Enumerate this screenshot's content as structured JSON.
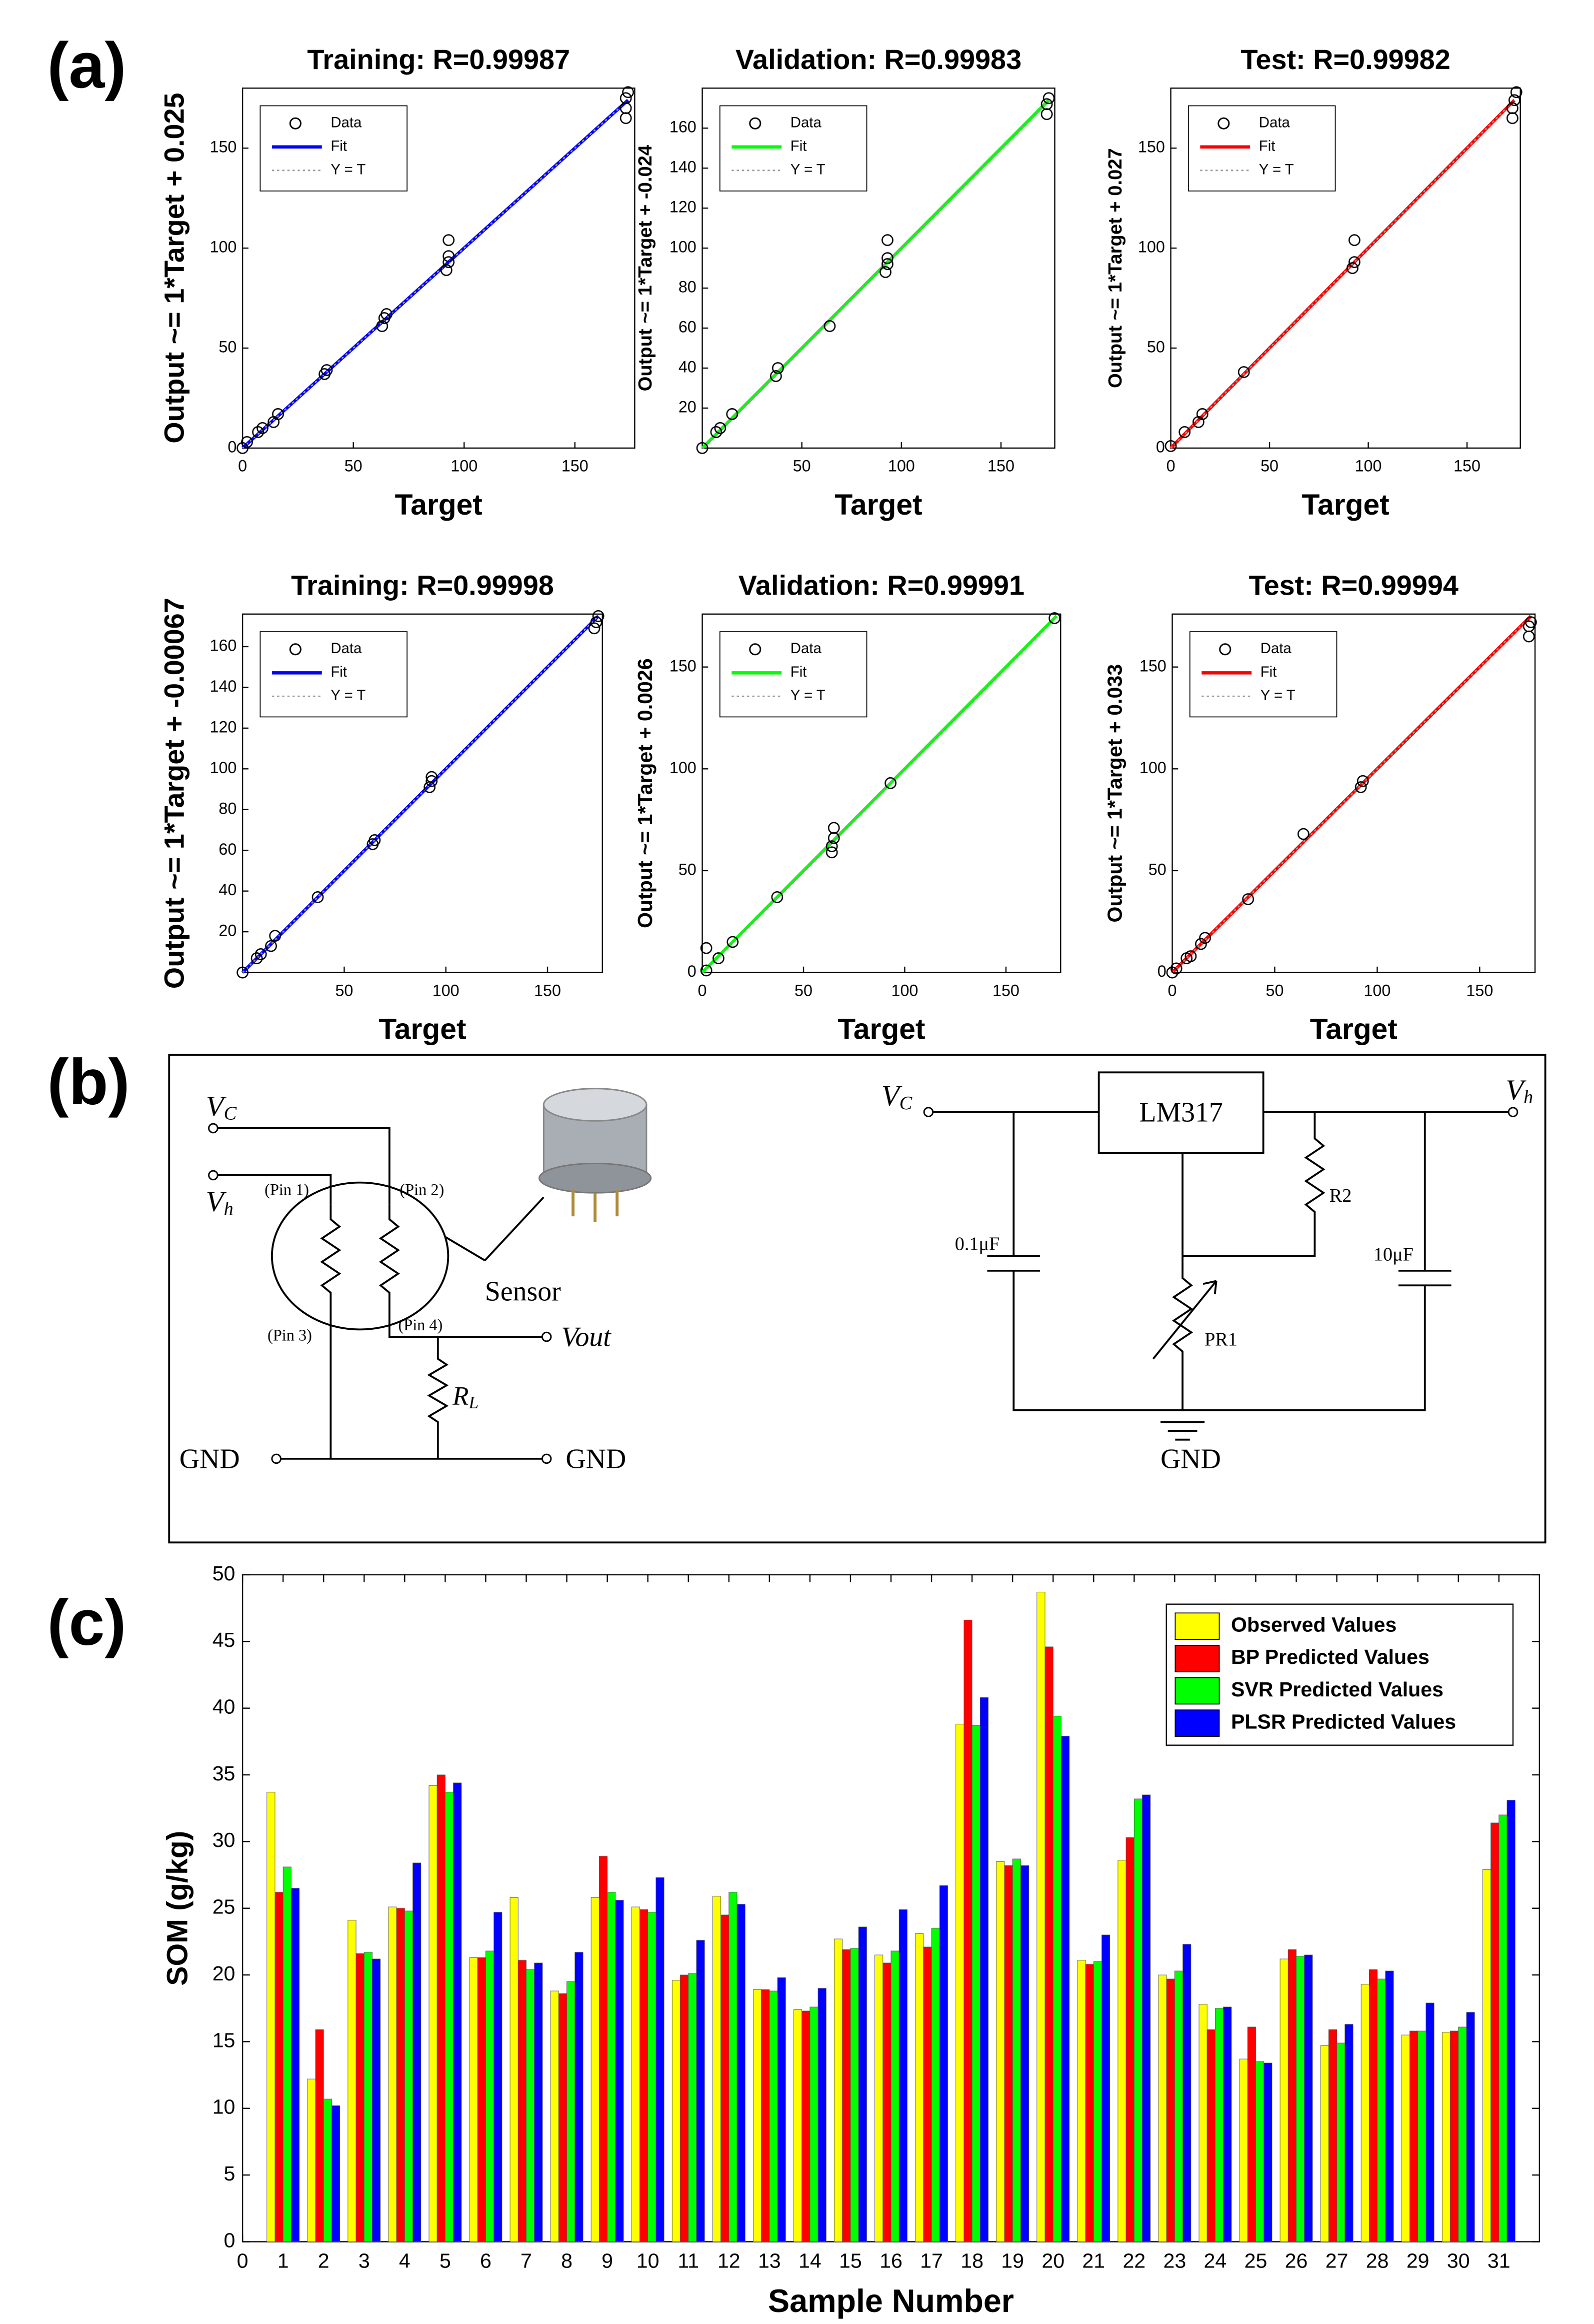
{
  "panel_labels": [
    "(a)",
    "(b)",
    "(c)"
  ],
  "chart_data": [
    {
      "type": "scatter",
      "title": "Training: R=0.99987",
      "xlabel": "Target",
      "ylabel": "Output ~= 1*Target + 0.025",
      "xlim": [
        0,
        177
      ],
      "ylim": [
        0,
        180
      ],
      "xticks": [
        0,
        50,
        100,
        150
      ],
      "yticks": [
        0,
        50,
        100,
        150
      ],
      "legend": "upper left",
      "series": [
        {
          "name": "Data",
          "color": "#000000",
          "line_style": "none",
          "marker": "circle",
          "x": [
            0,
            2,
            7,
            9,
            14,
            16,
            37,
            38,
            63,
            64,
            65,
            92,
            93,
            93,
            93,
            173,
            173,
            173,
            174
          ],
          "values": [
            0,
            3,
            8,
            10,
            13,
            17,
            37,
            39,
            61,
            65,
            67,
            89,
            93,
            96,
            104,
            165,
            170,
            175,
            178
          ]
        },
        {
          "name": "Fit",
          "color": "#0000ff",
          "line_style": "solid",
          "x": [
            0,
            174
          ],
          "values": [
            0.025,
            174.025
          ]
        },
        {
          "name": "Y = T",
          "color": "#999999",
          "line_style": "dotted",
          "x": [
            0,
            174
          ],
          "values": [
            0,
            174
          ]
        }
      ]
    },
    {
      "type": "scatter",
      "title": "Validation: R=0.99983",
      "xlabel": "Target",
      "ylabel": "Output ~= 1*Target + -0.024",
      "xlim": [
        0,
        177
      ],
      "ylim": [
        0,
        180
      ],
      "xticks": [
        50,
        100,
        150
      ],
      "yticks": [
        20,
        40,
        60,
        80,
        100,
        120,
        140,
        160
      ],
      "legend": "upper left",
      "series": [
        {
          "name": "Data",
          "color": "#000000",
          "line_style": "none",
          "marker": "circle",
          "x": [
            0,
            7,
            9,
            15,
            37,
            38,
            64,
            92,
            93,
            93,
            93,
            173,
            173,
            174
          ],
          "values": [
            0,
            8,
            10,
            17,
            36,
            40,
            61,
            88,
            92,
            95,
            104,
            167,
            172,
            175
          ]
        },
        {
          "name": "Fit",
          "color": "#00ff00",
          "line_style": "solid",
          "x": [
            0,
            174
          ],
          "values": [
            -0.024,
            173.976
          ]
        },
        {
          "name": "Y = T",
          "color": "#999999",
          "line_style": "dotted",
          "x": [
            0,
            174
          ],
          "values": [
            0,
            174
          ]
        }
      ]
    },
    {
      "type": "scatter",
      "title": "Test: R=0.99982",
      "xlabel": "Target",
      "ylabel": "Output ~= 1*Target + 0.027",
      "xlim": [
        0,
        177
      ],
      "ylim": [
        0,
        180
      ],
      "xticks": [
        0,
        50,
        100,
        150
      ],
      "yticks": [
        0,
        50,
        100,
        150
      ],
      "legend": "upper left",
      "series": [
        {
          "name": "Data",
          "color": "#000000",
          "line_style": "none",
          "marker": "circle",
          "x": [
            0,
            7,
            14,
            16,
            37,
            92,
            93,
            93,
            173,
            173,
            174,
            175
          ],
          "values": [
            1,
            8,
            13,
            17,
            38,
            90,
            93,
            104,
            165,
            170,
            174,
            178
          ]
        },
        {
          "name": "Fit",
          "color": "#ff0000",
          "line_style": "solid",
          "x": [
            0,
            174
          ],
          "values": [
            0.027,
            174.027
          ]
        },
        {
          "name": "Y = T",
          "color": "#999999",
          "line_style": "dotted",
          "x": [
            0,
            174
          ],
          "values": [
            0,
            174
          ]
        }
      ]
    },
    {
      "type": "scatter",
      "title": "Training: R=0.99998",
      "xlabel": "Target",
      "ylabel": "Output ~= 1*Target + -0.00067",
      "xlim": [
        0,
        177
      ],
      "ylim": [
        0,
        176
      ],
      "xticks": [
        50,
        100,
        150
      ],
      "yticks": [
        20,
        40,
        60,
        80,
        100,
        120,
        140,
        160
      ],
      "legend": "upper left",
      "series": [
        {
          "name": "Data",
          "color": "#000000",
          "line_style": "none",
          "marker": "circle",
          "x": [
            0,
            7,
            9,
            14,
            16,
            37,
            64,
            65,
            92,
            93,
            93,
            173,
            174,
            175
          ],
          "values": [
            0,
            7,
            9,
            13,
            18,
            37,
            63,
            65,
            91,
            94,
            96,
            169,
            172,
            175
          ]
        },
        {
          "name": "Fit",
          "color": "#0000ff",
          "line_style": "solid",
          "x": [
            0,
            175
          ],
          "values": [
            -0.00067,
            174.99933
          ]
        },
        {
          "name": "Y = T",
          "color": "#999999",
          "line_style": "dotted",
          "x": [
            0,
            175
          ],
          "values": [
            0,
            175
          ]
        }
      ]
    },
    {
      "type": "scatter",
      "title": "Validation: R=0.99991",
      "xlabel": "Target",
      "ylabel": "Output ~= 1*Target + 0.0026",
      "xlim": [
        0,
        177
      ],
      "ylim": [
        0,
        176
      ],
      "xticks": [
        0,
        50,
        100,
        150
      ],
      "yticks": [
        0,
        50,
        100,
        150
      ],
      "legend": "upper left",
      "series": [
        {
          "name": "Data",
          "color": "#000000",
          "line_style": "none",
          "marker": "circle",
          "x": [
            2,
            2,
            8,
            15,
            37,
            64,
            64,
            65,
            65,
            93,
            174
          ],
          "values": [
            12,
            1,
            7,
            15,
            37,
            59,
            62,
            66,
            71,
            93,
            174
          ]
        },
        {
          "name": "Fit",
          "color": "#00ff00",
          "line_style": "solid",
          "x": [
            0,
            175
          ],
          "values": [
            0.0026,
            175.0026
          ]
        },
        {
          "name": "Y = T",
          "color": "#999999",
          "line_style": "dotted",
          "x": [
            0,
            175
          ],
          "values": [
            0,
            175
          ]
        }
      ]
    },
    {
      "type": "scatter",
      "title": "Test: R=0.99994",
      "xlabel": "Target",
      "ylabel": "Output ~= 1*Target + 0.033",
      "xlim": [
        0,
        177
      ],
      "ylim": [
        0,
        176
      ],
      "xticks": [
        0,
        50,
        100,
        150
      ],
      "yticks": [
        0,
        50,
        100,
        150
      ],
      "legend": "upper left",
      "series": [
        {
          "name": "Data",
          "color": "#000000",
          "line_style": "none",
          "marker": "circle",
          "x": [
            0,
            2,
            7,
            9,
            14,
            16,
            37,
            64,
            92,
            93,
            174,
            174,
            175
          ],
          "values": [
            0,
            2,
            7,
            8,
            14,
            17,
            36,
            68,
            91,
            94,
            165,
            170,
            172
          ]
        },
        {
          "name": "Fit",
          "color": "#ff0000",
          "line_style": "solid",
          "x": [
            0,
            175
          ],
          "values": [
            0.033,
            175.033
          ]
        },
        {
          "name": "Y = T",
          "color": "#999999",
          "line_style": "dotted",
          "x": [
            0,
            175
          ],
          "values": [
            0,
            175
          ]
        }
      ]
    },
    {
      "type": "bar",
      "xlabel": "Sample Number",
      "ylabel": "SOM (g/kg)",
      "legend": "upper right",
      "x": [
        1,
        2,
        3,
        4,
        5,
        6,
        7,
        8,
        9,
        10,
        11,
        12,
        13,
        14,
        15,
        16,
        17,
        18,
        19,
        20,
        21,
        22,
        23,
        24,
        25,
        26,
        27,
        28,
        29,
        30,
        31
      ],
      "xlim": [
        0,
        32
      ],
      "xticks": [
        0,
        1,
        2,
        3,
        4,
        5,
        6,
        7,
        8,
        9,
        10,
        11,
        12,
        13,
        14,
        15,
        16,
        17,
        18,
        19,
        20,
        21,
        22,
        23,
        24,
        25,
        26,
        27,
        28,
        29,
        30,
        31
      ],
      "ylim": [
        0,
        50
      ],
      "yticks": [
        0,
        5,
        10,
        15,
        20,
        25,
        30,
        35,
        40,
        45,
        50
      ],
      "series": [
        {
          "name": "Observed Values",
          "color": "#ffff00",
          "values": [
            33.7,
            12.2,
            24.1,
            25.1,
            34.2,
            21.3,
            25.8,
            18.8,
            25.8,
            25.1,
            19.6,
            25.9,
            18.9,
            17.4,
            22.7,
            21.5,
            23.1,
            38.8,
            28.5,
            48.7,
            21.1,
            28.6,
            20.0,
            17.8,
            13.7,
            21.2,
            14.7,
            19.3,
            15.5,
            15.7,
            27.9
          ]
        },
        {
          "name": "BP Predicted Values",
          "color": "#ff0000",
          "values": [
            26.2,
            15.9,
            21.6,
            25.0,
            35.0,
            21.3,
            21.1,
            18.6,
            28.9,
            24.9,
            20.0,
            24.5,
            18.9,
            17.3,
            21.9,
            20.9,
            22.1,
            46.6,
            28.2,
            44.6,
            20.8,
            30.3,
            19.7,
            15.9,
            16.1,
            21.9,
            15.9,
            20.4,
            15.8,
            15.8,
            31.4
          ]
        },
        {
          "name": "SVR Predicted Values",
          "color": "#00ff00",
          "values": [
            28.1,
            10.7,
            21.7,
            24.8,
            33.7,
            21.8,
            20.4,
            19.5,
            26.2,
            24.7,
            20.1,
            26.2,
            18.8,
            17.6,
            22.0,
            21.8,
            23.5,
            38.7,
            28.7,
            39.4,
            21.0,
            33.2,
            20.3,
            17.5,
            13.5,
            21.4,
            14.9,
            19.7,
            15.8,
            16.1,
            32.0
          ]
        },
        {
          "name": "PLSR Predicted Values",
          "color": "#0000ff",
          "values": [
            26.5,
            10.2,
            21.2,
            28.4,
            34.4,
            24.7,
            20.9,
            21.7,
            25.6,
            27.3,
            22.6,
            25.3,
            19.8,
            19.0,
            23.6,
            24.9,
            26.7,
            40.8,
            28.2,
            37.9,
            23.0,
            33.5,
            22.3,
            17.6,
            13.4,
            21.5,
            16.3,
            20.3,
            17.9,
            17.2,
            33.1
          ]
        }
      ]
    }
  ],
  "diagram": {
    "labels": [
      {
        "text": "V",
        "sub": "C"
      },
      {
        "text": "V",
        "sub": "h"
      },
      {
        "text": "(Pin 1)"
      },
      {
        "text": "(Pin 2)"
      },
      {
        "text": "(Pin 3)"
      },
      {
        "text": "(Pin 4)"
      },
      {
        "text": "Sensor"
      },
      {
        "text": "Vout"
      },
      {
        "text": "R",
        "sub": "L"
      },
      {
        "text": "GND"
      },
      {
        "text": "GND"
      },
      {
        "text": "V",
        "sub": "C"
      },
      {
        "text": "LM317"
      },
      {
        "text": "V",
        "sub": "h"
      },
      {
        "text": "R2"
      },
      {
        "text": "0.1μF"
      },
      {
        "text": "10μF"
      },
      {
        "text": "PR1"
      },
      {
        "text": "GND"
      }
    ]
  }
}
